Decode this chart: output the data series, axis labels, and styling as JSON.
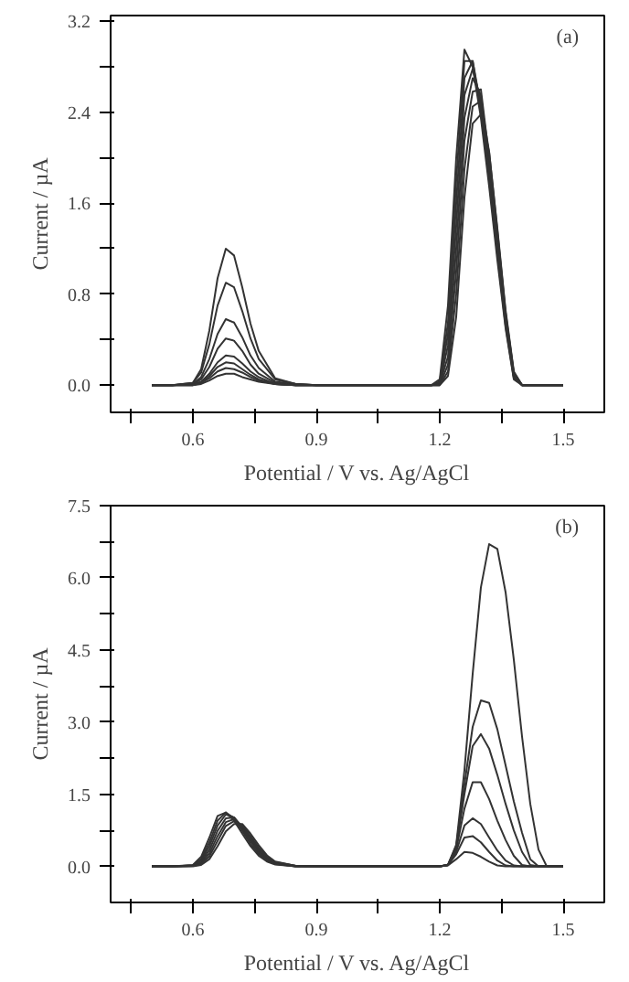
{
  "chart_data": [
    {
      "type": "line",
      "xlabel": "Potential / V vs. Ag/AgCl",
      "ylabel": "Current / µA",
      "annotations": [
        "(a)"
      ],
      "x": [
        0.5,
        0.55,
        0.6,
        0.62,
        0.64,
        0.66,
        0.68,
        0.7,
        0.72,
        0.74,
        0.76,
        0.8,
        0.85,
        0.9,
        1.0,
        1.1,
        1.18,
        1.2,
        1.22,
        1.24,
        1.26,
        1.28,
        1.3,
        1.32,
        1.34,
        1.36,
        1.38,
        1.4,
        1.45,
        1.5
      ],
      "xlim": [
        0.4,
        1.6
      ],
      "ylim": [
        -0.24,
        3.25
      ],
      "xticks": [
        {
          "value": 0.45,
          "label": null
        },
        {
          "value": 0.6,
          "label": "0.6"
        },
        {
          "value": 0.75,
          "label": null
        },
        {
          "value": 0.9,
          "label": "0.9"
        },
        {
          "value": 1.05,
          "label": null
        },
        {
          "value": 1.2,
          "label": "1.2"
        },
        {
          "value": 1.35,
          "label": null
        },
        {
          "value": 1.5,
          "label": "1.5"
        }
      ],
      "yticks": [
        {
          "value": 0,
          "label": "0.0"
        },
        {
          "value": 0.4,
          "label": null
        },
        {
          "value": 0.8,
          "label": "0.8"
        },
        {
          "value": 1.2,
          "label": null
        },
        {
          "value": 1.6,
          "label": "1.6"
        },
        {
          "value": 2.0,
          "label": null
        },
        {
          "value": 2.4,
          "label": "2.4"
        },
        {
          "value": 2.8,
          "label": null
        },
        {
          "value": 3.2,
          "label": "3.2"
        }
      ],
      "series": [
        {
          "color": "#333333",
          "values": [
            0,
            0,
            0.02,
            0.14,
            0.48,
            0.94,
            1.2,
            1.14,
            0.86,
            0.54,
            0.3,
            0.06,
            0.01,
            0,
            0,
            0,
            0,
            0,
            0.08,
            0.6,
            1.65,
            2.3,
            2.38,
            2.05,
            1.38,
            0.66,
            0.12,
            0,
            0,
            0
          ]
        },
        {
          "color": "#333333",
          "values": [
            0,
            0,
            0.02,
            0.11,
            0.36,
            0.7,
            0.9,
            0.86,
            0.65,
            0.41,
            0.23,
            0.05,
            0.01,
            0,
            0,
            0,
            0,
            0,
            0.12,
            0.8,
            1.9,
            2.45,
            2.5,
            2.05,
            1.36,
            0.64,
            0.11,
            0,
            0,
            0
          ]
        },
        {
          "color": "#333333",
          "values": [
            0,
            0,
            0.01,
            0.07,
            0.23,
            0.45,
            0.58,
            0.55,
            0.42,
            0.26,
            0.15,
            0.03,
            0.01,
            0,
            0,
            0,
            0,
            0,
            0.18,
            1.0,
            2.15,
            2.58,
            2.6,
            2.0,
            1.33,
            0.62,
            0.1,
            0,
            0,
            0
          ]
        },
        {
          "color": "#333333",
          "values": [
            0,
            0,
            0.01,
            0.05,
            0.16,
            0.32,
            0.41,
            0.39,
            0.3,
            0.18,
            0.1,
            0.02,
            0,
            0,
            0,
            0,
            0,
            0.01,
            0.25,
            1.2,
            2.35,
            2.7,
            2.55,
            1.95,
            1.3,
            0.6,
            0.09,
            0,
            0,
            0
          ]
        },
        {
          "color": "#333333",
          "values": [
            0,
            0,
            0.01,
            0.03,
            0.1,
            0.2,
            0.26,
            0.25,
            0.19,
            0.12,
            0.07,
            0.01,
            0,
            0,
            0,
            0,
            0,
            0.01,
            0.35,
            1.4,
            2.55,
            2.78,
            2.5,
            1.9,
            1.25,
            0.58,
            0.08,
            0,
            0,
            0
          ]
        },
        {
          "color": "#333333",
          "values": [
            0,
            0,
            0,
            0.02,
            0.08,
            0.16,
            0.2,
            0.19,
            0.14,
            0.09,
            0.05,
            0.01,
            0,
            0,
            0,
            0,
            0,
            0.02,
            0.45,
            1.6,
            2.7,
            2.85,
            2.45,
            1.85,
            1.2,
            0.55,
            0.07,
            0,
            0,
            0
          ]
        },
        {
          "color": "#333333",
          "values": [
            0,
            0,
            0,
            0.02,
            0.06,
            0.12,
            0.15,
            0.14,
            0.11,
            0.07,
            0.04,
            0.01,
            0,
            0,
            0,
            0,
            0,
            0.03,
            0.55,
            1.8,
            2.85,
            2.85,
            2.4,
            1.8,
            1.15,
            0.52,
            0.06,
            0,
            0,
            0
          ]
        },
        {
          "color": "#333333",
          "values": [
            0,
            0,
            0,
            0.01,
            0.04,
            0.08,
            0.1,
            0.1,
            0.07,
            0.05,
            0.03,
            0.01,
            0,
            0,
            0,
            0,
            0,
            0.05,
            0.7,
            2.0,
            2.95,
            2.8,
            2.35,
            1.75,
            1.1,
            0.5,
            0.05,
            0,
            0,
            0
          ]
        }
      ]
    },
    {
      "type": "line",
      "xlabel": "Potential / V vs. Ag/AgCl",
      "ylabel": "Current / µA",
      "annotations": [
        "(b)"
      ],
      "x": [
        0.5,
        0.55,
        0.6,
        0.62,
        0.64,
        0.66,
        0.68,
        0.7,
        0.72,
        0.74,
        0.76,
        0.78,
        0.8,
        0.85,
        0.9,
        1.0,
        1.1,
        1.2,
        1.22,
        1.24,
        1.26,
        1.28,
        1.3,
        1.32,
        1.34,
        1.36,
        1.38,
        1.4,
        1.42,
        1.44,
        1.46,
        1.5
      ],
      "xlim": [
        0.4,
        1.6
      ],
      "ylim": [
        -0.75,
        7.5
      ],
      "xticks": [
        {
          "value": 0.45,
          "label": null
        },
        {
          "value": 0.6,
          "label": "0.6"
        },
        {
          "value": 0.75,
          "label": null
        },
        {
          "value": 0.9,
          "label": "0.9"
        },
        {
          "value": 1.05,
          "label": null
        },
        {
          "value": 1.2,
          "label": "1.2"
        },
        {
          "value": 1.35,
          "label": null
        },
        {
          "value": 1.5,
          "label": "1.5"
        }
      ],
      "yticks": [
        {
          "value": 0,
          "label": "0.0"
        },
        {
          "value": 0.75,
          "label": null
        },
        {
          "value": 1.5,
          "label": "1.5"
        },
        {
          "value": 2.25,
          "label": null
        },
        {
          "value": 3.0,
          "label": "3.0"
        },
        {
          "value": 3.75,
          "label": null
        },
        {
          "value": 4.5,
          "label": "4.5"
        },
        {
          "value": 5.25,
          "label": null
        },
        {
          "value": 6.0,
          "label": "6.0"
        },
        {
          "value": 6.75,
          "label": null
        },
        {
          "value": 7.5,
          "label": "7.5"
        }
      ],
      "series": [
        {
          "color": "#333333",
          "values": [
            0,
            0,
            0.03,
            0.2,
            0.6,
            1.05,
            1.12,
            0.95,
            0.68,
            0.42,
            0.22,
            0.1,
            0.04,
            0,
            0,
            0,
            0,
            0,
            0.02,
            0.15,
            0.3,
            0.28,
            0.2,
            0.1,
            0.02,
            0,
            0,
            0,
            0,
            0,
            0,
            0
          ]
        },
        {
          "color": "#333333",
          "values": [
            0,
            0,
            0.02,
            0.15,
            0.5,
            0.95,
            1.12,
            1.0,
            0.74,
            0.47,
            0.26,
            0.12,
            0.05,
            0,
            0,
            0,
            0,
            0,
            0.03,
            0.25,
            0.6,
            0.63,
            0.5,
            0.3,
            0.12,
            0.02,
            0,
            0,
            0,
            0,
            0,
            0
          ]
        },
        {
          "color": "#333333",
          "values": [
            0,
            0,
            0.02,
            0.12,
            0.42,
            0.85,
            1.08,
            1.02,
            0.78,
            0.52,
            0.3,
            0.14,
            0.06,
            0,
            0,
            0,
            0,
            0,
            0.03,
            0.3,
            0.85,
            1.0,
            0.88,
            0.6,
            0.33,
            0.12,
            0.02,
            0,
            0,
            0,
            0,
            0
          ]
        },
        {
          "color": "#333333",
          "values": [
            0,
            0,
            0.01,
            0.09,
            0.34,
            0.74,
            1.0,
            1.02,
            0.82,
            0.56,
            0.33,
            0.16,
            0.07,
            0,
            0,
            0,
            0,
            0,
            0.03,
            0.35,
            1.2,
            1.75,
            1.75,
            1.4,
            0.95,
            0.55,
            0.22,
            0.03,
            0,
            0,
            0,
            0
          ]
        },
        {
          "color": "#333333",
          "values": [
            0,
            0,
            0.01,
            0.07,
            0.27,
            0.63,
            0.92,
            0.98,
            0.84,
            0.6,
            0.36,
            0.18,
            0.08,
            0.01,
            0,
            0,
            0,
            0,
            0.03,
            0.4,
            1.5,
            2.5,
            2.75,
            2.45,
            1.9,
            1.3,
            0.75,
            0.3,
            0.03,
            0,
            0,
            0
          ]
        },
        {
          "color": "#333333",
          "values": [
            0,
            0,
            0.01,
            0.05,
            0.21,
            0.53,
            0.84,
            0.94,
            0.85,
            0.63,
            0.39,
            0.2,
            0.09,
            0.01,
            0,
            0,
            0,
            0,
            0.03,
            0.42,
            1.7,
            2.9,
            3.45,
            3.4,
            2.85,
            2.1,
            1.35,
            0.7,
            0.15,
            0,
            0,
            0
          ]
        },
        {
          "color": "#333333",
          "values": [
            0,
            0,
            0,
            0.03,
            0.15,
            0.42,
            0.73,
            0.88,
            0.88,
            0.68,
            0.44,
            0.23,
            0.1,
            0.01,
            0,
            0,
            0,
            0,
            0.03,
            0.45,
            2.0,
            4.0,
            5.8,
            6.7,
            6.6,
            5.7,
            4.3,
            2.7,
            1.3,
            0.35,
            0,
            0
          ]
        }
      ]
    }
  ]
}
